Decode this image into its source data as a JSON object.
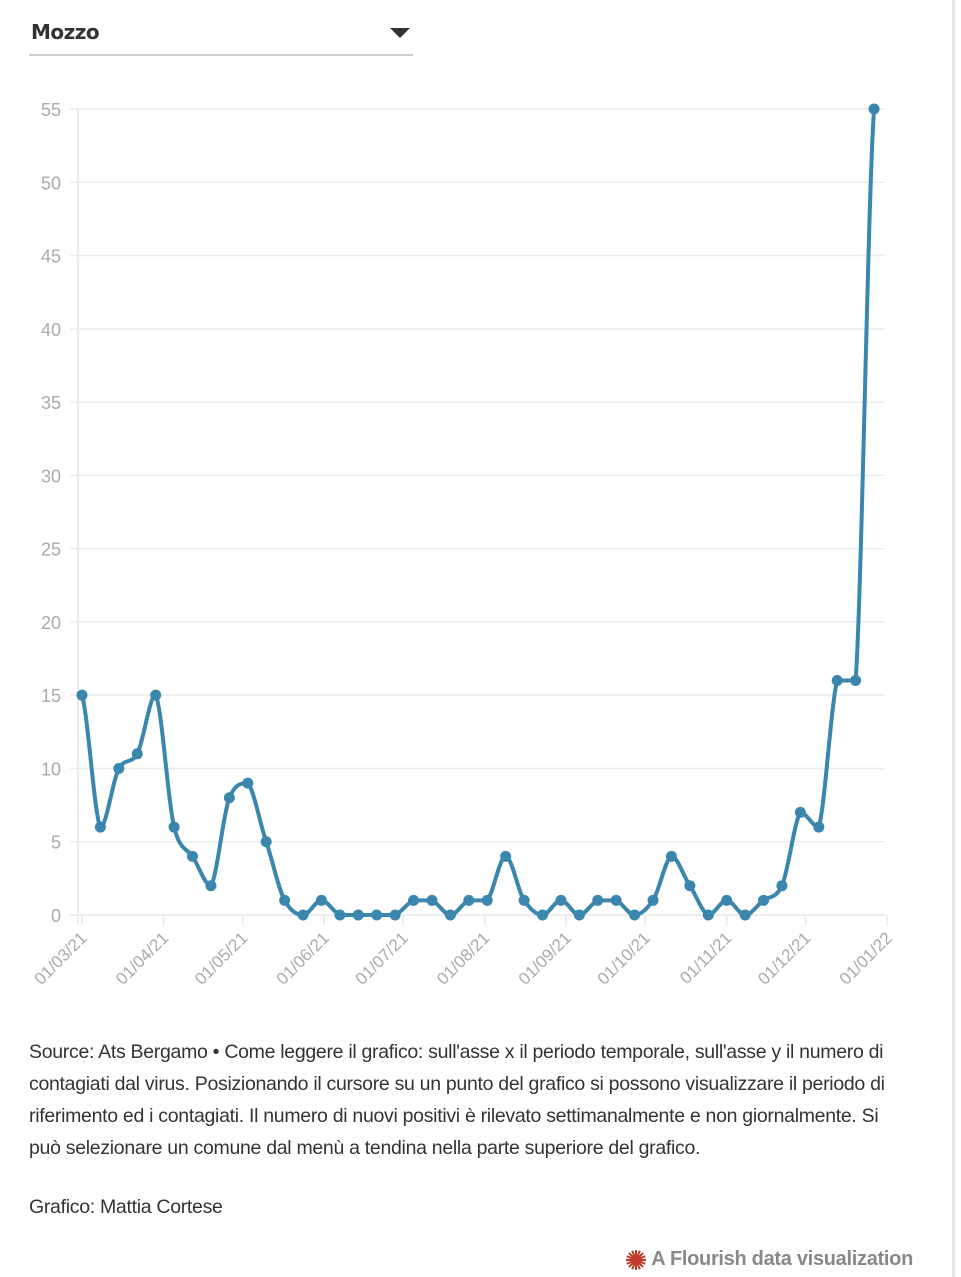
{
  "dropdown": {
    "selected": "Mozzo"
  },
  "colors": {
    "line": "#3a86ad",
    "grid": "#ececec",
    "tick_text": "#aaaaaa",
    "flourish_icon": "#c0392b"
  },
  "chart_data": {
    "type": "line",
    "title": "",
    "xlabel": "",
    "ylabel": "",
    "ylim": [
      0,
      55
    ],
    "yticks": [
      0,
      5,
      10,
      15,
      20,
      25,
      30,
      35,
      40,
      45,
      50,
      55
    ],
    "ytick_labels": [
      "0",
      "5",
      "10",
      "15",
      "20",
      "25",
      "30",
      "35",
      "40",
      "45",
      "50",
      "55"
    ],
    "xtick_labels": [
      "01/03/21",
      "01/04/21",
      "01/05/21",
      "01/06/21",
      "01/07/21",
      "01/08/21",
      "01/09/21",
      "01/10/21",
      "01/11/21",
      "01/12/21",
      "01/01/22"
    ],
    "xtick_days": [
      0,
      31,
      61,
      92,
      122,
      153,
      184,
      214,
      245,
      275,
      306
    ],
    "x_start_day": 0,
    "x_step_days": 7,
    "grid": true,
    "series": [
      {
        "name": "Mozzo",
        "values": [
          15,
          6,
          10,
          11,
          15,
          6,
          4,
          2,
          8,
          9,
          5,
          1,
          0,
          1,
          0,
          0,
          0,
          0,
          1,
          1,
          0,
          1,
          1,
          4,
          1,
          0,
          1,
          0,
          1,
          1,
          0,
          1,
          4,
          2,
          0,
          1,
          0,
          1,
          2,
          7,
          6,
          16,
          16,
          55
        ]
      }
    ]
  },
  "caption": {
    "text": "Source: Ats Bergamo • Come leggere il grafico: sull'asse x il periodo temporale, sull'asse y il numero di contagiati dal virus. Posizionando il cursore su un punto del grafico si possono visualizzare il periodo di riferimento ed i contagiati. Il numero di nuovi positivi è rilevato settimanalmente e non giornalmente. Si può selezionare un comune dal menù a tendina nella parte superiore del grafico.",
    "credit": "Grafico: Mattia Cortese"
  },
  "footer": {
    "flourish_label": "A Flourish data visualization",
    "icon": "flourish-star-icon"
  }
}
